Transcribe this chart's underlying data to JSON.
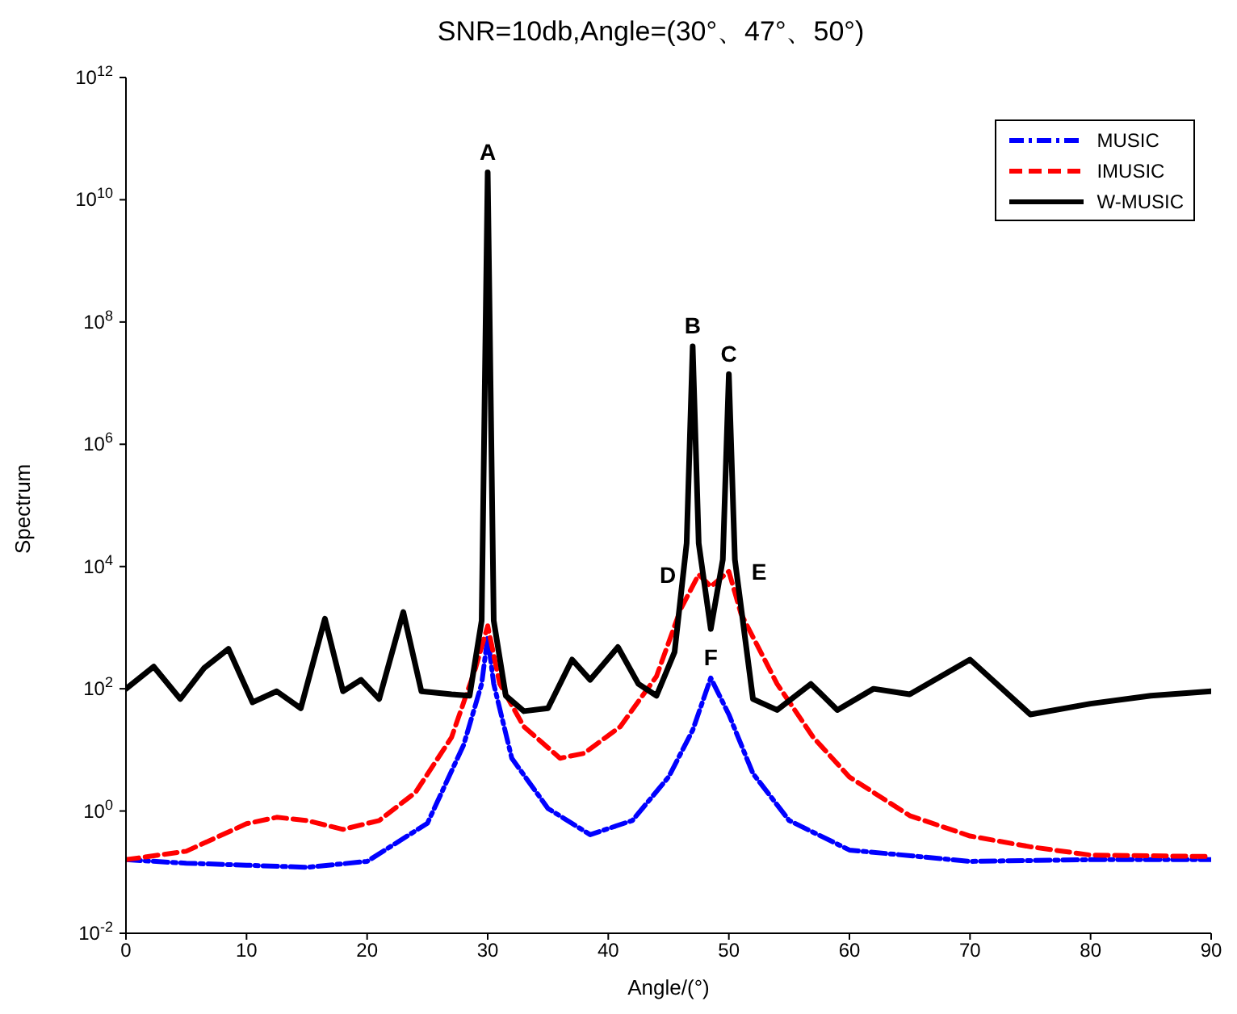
{
  "chart_data": {
    "type": "line",
    "title": "SNR=10db,Angle=(30°、47°、50°)",
    "xlabel": "Angle/(°)",
    "ylabel": "Spectrum",
    "log": "y",
    "grid": false,
    "legend": "top right",
    "marker": "none",
    "xlim": [
      0,
      90
    ],
    "xticks": [
      0,
      10,
      20,
      30,
      40,
      50,
      60,
      70,
      80,
      90
    ],
    "ylim": [
      0.01,
      1000000000000
    ],
    "yticks": [
      {
        "value": 0.01,
        "label": "10$^{-2}$"
      },
      {
        "value": 1,
        "label": "10$^{0}$"
      },
      {
        "value": 100,
        "label": "10$^{2}$"
      },
      {
        "value": 10000,
        "label": "10$^{4}$"
      },
      {
        "value": 1000000,
        "label": "10$^{6}$"
      },
      {
        "value": 100000000,
        "label": "10$^{8}$"
      },
      {
        "value": 10000000000,
        "label": "10$^{10}$"
      },
      {
        "value": 1000000000000,
        "label": "10$^{12}$"
      }
    ],
    "series": [
      {
        "name": "MUSIC",
        "color": "#0000ff",
        "line_style": "dashdot",
        "x": [
          0,
          5,
          10,
          15,
          20,
          25,
          28,
          29.5,
          30,
          30.5,
          32,
          35,
          38.5,
          42,
          45,
          47,
          48.5,
          50,
          52,
          55,
          60,
          70,
          80,
          90
        ],
        "values": [
          0.16,
          0.14,
          0.13,
          0.12,
          0.15,
          0.63,
          12,
          120,
          710,
          120,
          7.3,
          1.1,
          0.41,
          0.7,
          3.6,
          21,
          150,
          38,
          4.1,
          0.7,
          0.23,
          0.15,
          0.16,
          0.16
        ]
      },
      {
        "name": "IMUSIC",
        "color": "#ff0000",
        "line_style": "dashed",
        "x": [
          0,
          5,
          10,
          12.5,
          15,
          18,
          21,
          24,
          27,
          29,
          30,
          31,
          33,
          36,
          38,
          41,
          44,
          46,
          47.5,
          48.5,
          50,
          51,
          54,
          57,
          60,
          65,
          70,
          75,
          80,
          90
        ],
        "values": [
          0.16,
          0.22,
          0.62,
          0.79,
          0.7,
          0.5,
          0.7,
          2,
          16,
          220,
          1070,
          120,
          24,
          7.3,
          8.8,
          24,
          160,
          2000,
          7400,
          4700,
          8300,
          1700,
          120,
          16,
          3.6,
          0.84,
          0.39,
          0.26,
          0.19,
          0.18
        ]
      },
      {
        "name": "W-MUSIC",
        "color": "#000000",
        "line_style": "solid",
        "x": [
          0,
          2.3,
          4.5,
          6.5,
          8.5,
          10.5,
          12.5,
          14.5,
          16.5,
          18,
          19.5,
          21,
          23,
          24.5,
          27,
          28.5,
          29.5,
          30,
          30.5,
          31.5,
          33,
          35,
          37,
          38.5,
          40.8,
          42.5,
          44,
          45.5,
          46.5,
          47,
          47.5,
          48.5,
          49.5,
          50,
          50.5,
          52,
          54,
          56.8,
          59,
          62,
          65,
          70,
          75,
          80,
          85,
          90
        ],
        "values": [
          100,
          230,
          68,
          220,
          450,
          60,
          91,
          48,
          1400,
          91,
          140,
          68,
          1800,
          91,
          81,
          77,
          1300,
          28000000000,
          1300,
          77,
          43,
          48,
          300,
          140,
          480,
          120,
          77,
          400,
          24000,
          40000000,
          24000,
          950,
          13000,
          14000000,
          13000,
          68,
          45,
          120,
          45,
          100,
          81,
          300,
          38,
          57,
          77,
          91
        ]
      }
    ],
    "annotations": [
      {
        "text": "A",
        "x": 30,
        "y": 28000000000
      },
      {
        "text": "B",
        "x": 47,
        "y": 40000000
      },
      {
        "text": "C",
        "x": 50,
        "y": 14000000
      },
      {
        "text": "D",
        "x": 47.5,
        "y": 7400
      },
      {
        "text": "E",
        "x": 50,
        "y": 8300
      },
      {
        "text": "F",
        "x": 48.5,
        "y": 150
      }
    ]
  }
}
